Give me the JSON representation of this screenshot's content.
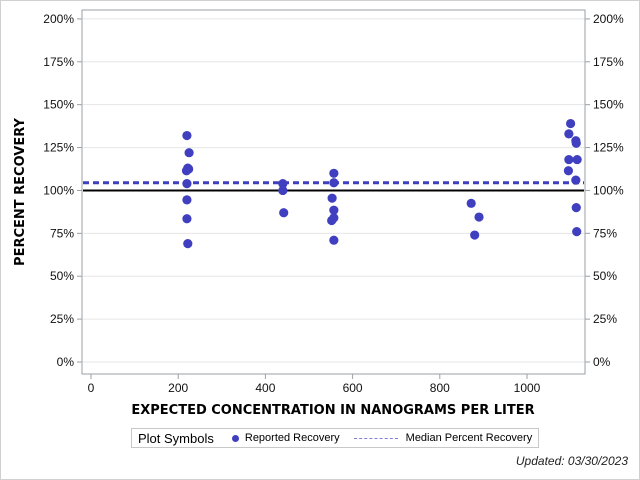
{
  "chart_data": {
    "type": "scatter",
    "title": "",
    "xlabel": "EXPECTED CONCENTRATION IN NANOGRAMS PER LITER",
    "ylabel": "PERCENT RECOVERY",
    "xlim": [
      -20,
      1150
    ],
    "ylim": [
      -5,
      205
    ],
    "x_ticks": [
      "0",
      "200",
      "400",
      "600",
      "800",
      "1000"
    ],
    "y_ticks": [
      "0%",
      "25%",
      "50%",
      "75%",
      "100%",
      "125%",
      "150%",
      "175%",
      "200%"
    ],
    "grid": true,
    "reference_lines": [
      {
        "name": "100% reference",
        "y": 100,
        "style": "solid",
        "color": "#000000"
      },
      {
        "name": "Median Percent Recovery",
        "y": 104.5,
        "style": "dashed",
        "color": "#3f3fbf"
      }
    ],
    "series": [
      {
        "name": "Reported Recovery",
        "color": "#3f3fbf",
        "points": [
          [
            220,
            132
          ],
          [
            225,
            122
          ],
          [
            222,
            113
          ],
          [
            224,
            112.5
          ],
          [
            219,
            111.5
          ],
          [
            220,
            104
          ],
          [
            220,
            94.5
          ],
          [
            220,
            83.5
          ],
          [
            222,
            69
          ],
          [
            440,
            104
          ],
          [
            440,
            100
          ],
          [
            442,
            87
          ],
          [
            557,
            110
          ],
          [
            557,
            104.5
          ],
          [
            553,
            95.5
          ],
          [
            557,
            88.5
          ],
          [
            557,
            84
          ],
          [
            552,
            82.5
          ],
          [
            557,
            71
          ],
          [
            872,
            92.5
          ],
          [
            890,
            84.5
          ],
          [
            880,
            74
          ],
          [
            1100,
            139
          ],
          [
            1096,
            133
          ],
          [
            1112,
            129
          ],
          [
            1113,
            127.5
          ],
          [
            1096,
            118
          ],
          [
            1115,
            118
          ],
          [
            1095,
            111.5
          ],
          [
            1112,
            106
          ],
          [
            1113,
            90
          ],
          [
            1114,
            76
          ]
        ]
      }
    ],
    "legend": {
      "title": "Plot Symbols",
      "entries": [
        "Reported Recovery",
        "Median Percent Recovery"
      ],
      "position": "bottom"
    },
    "footnote": "Updated: 03/30/2023"
  }
}
